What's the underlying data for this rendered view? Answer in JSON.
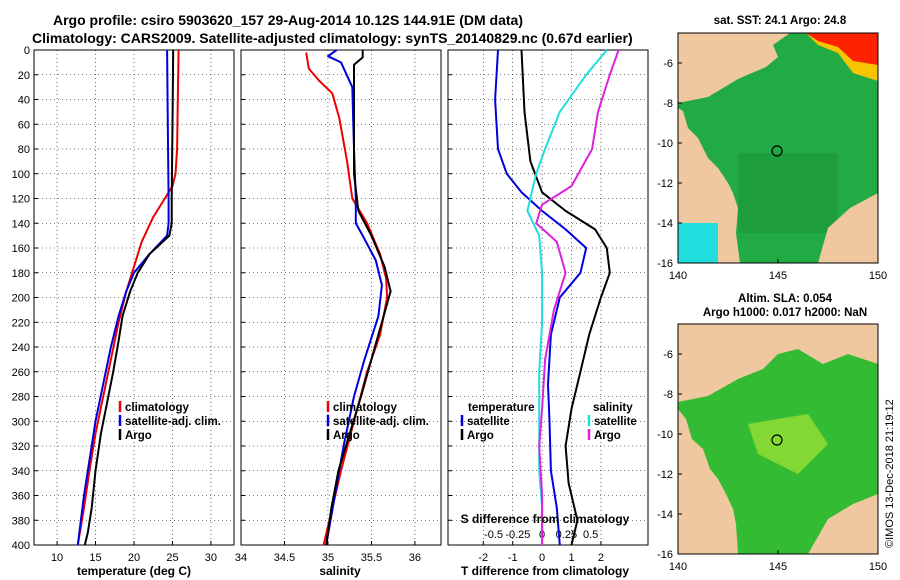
{
  "title": {
    "line1": "Argo profile: csiro 5903620_157 29-Aug-2014 10.12S 144.91E (DM data)",
    "line2": "Climatology: CARS2009. Satellite-adjusted climatology: synTS_20140829.nc (0.67d earlier)"
  },
  "side_label": "©IMOS 13-Dec-2018 21:19:12",
  "colors": {
    "red": "#ee0000",
    "blue": "#0000dd",
    "black": "#000000",
    "cyan": "#22dddd",
    "magenta": "#dd22dd",
    "land": "#f0c8a0",
    "sea": "#22aa44"
  },
  "chart_data": [
    {
      "type": "line",
      "id": "temperature",
      "xlabel": "temperature (deg C)",
      "ylim": [
        0,
        400
      ],
      "xlim": [
        7,
        33
      ],
      "xticks": [
        "10",
        "15",
        "20",
        "25",
        "30"
      ],
      "yticks": [
        "0",
        "20",
        "40",
        "60",
        "80",
        "100",
        "120",
        "140",
        "160",
        "180",
        "200",
        "220",
        "240",
        "260",
        "280",
        "300",
        "320",
        "340",
        "360",
        "380",
        "400"
      ],
      "legend": [
        "climatology",
        "satellite-adj. clim.",
        "Argo"
      ],
      "series": [
        {
          "name": "climatology",
          "color": "red",
          "points": [
            [
              25.8,
              0
            ],
            [
              25.7,
              40
            ],
            [
              25.6,
              80
            ],
            [
              25.4,
              100
            ],
            [
              25,
              110
            ],
            [
              24,
              120
            ],
            [
              22.5,
              135
            ],
            [
              21,
              155
            ],
            [
              20,
              175
            ],
            [
              19,
              195
            ],
            [
              18,
              220
            ],
            [
              17,
              250
            ],
            [
              16,
              280
            ],
            [
              15,
              310
            ],
            [
              14.2,
              340
            ],
            [
              13.5,
              370
            ],
            [
              12.7,
              400
            ]
          ]
        },
        {
          "name": "satellite-adj. clim.",
          "color": "blue",
          "points": [
            [
              24.3,
              0
            ],
            [
              24.4,
              60
            ],
            [
              24.5,
              120
            ],
            [
              24.5,
              140
            ],
            [
              24.3,
              150
            ],
            [
              22,
              165
            ],
            [
              20,
              180
            ],
            [
              19,
              195
            ],
            [
              18,
              215
            ],
            [
              17,
              240
            ],
            [
              16,
              270
            ],
            [
              15,
              300
            ],
            [
              14,
              340
            ],
            [
              13.5,
              360
            ],
            [
              12.7,
              400
            ]
          ]
        },
        {
          "name": "Argo",
          "color": "black",
          "points": [
            [
              25.1,
              0
            ],
            [
              25,
              60
            ],
            [
              24.9,
              120
            ],
            [
              24.9,
              140
            ],
            [
              24.6,
              150
            ],
            [
              22,
              165
            ],
            [
              20.5,
              180
            ],
            [
              19.5,
              195
            ],
            [
              18.5,
              215
            ],
            [
              18,
              235
            ],
            [
              17.3,
              260
            ],
            [
              16.5,
              285
            ],
            [
              15.7,
              310
            ],
            [
              15,
              340
            ],
            [
              14.5,
              370
            ],
            [
              14,
              390
            ],
            [
              13.6,
              400
            ]
          ]
        }
      ]
    },
    {
      "type": "line",
      "id": "salinity",
      "xlabel": "salinity",
      "ylim": [
        0,
        400
      ],
      "xlim": [
        34,
        36.3
      ],
      "xticks": [
        "34",
        "34.5",
        "35",
        "35.5",
        "36"
      ],
      "legend": [
        "climatology",
        "satellite-adj. clim.",
        "Argo"
      ],
      "series": [
        {
          "name": "climatology",
          "color": "red",
          "points": [
            [
              34.75,
              2
            ],
            [
              34.78,
              15
            ],
            [
              34.9,
              25
            ],
            [
              35.05,
              35
            ],
            [
              35.13,
              55
            ],
            [
              35.22,
              90
            ],
            [
              35.28,
              120
            ],
            [
              35.45,
              140
            ],
            [
              35.6,
              165
            ],
            [
              35.67,
              185
            ],
            [
              35.68,
              200
            ],
            [
              35.6,
              230
            ],
            [
              35.45,
              260
            ],
            [
              35.3,
              300
            ],
            [
              35.15,
              340
            ],
            [
              35.05,
              370
            ],
            [
              34.95,
              400
            ]
          ]
        },
        {
          "name": "satellite-adj. clim.",
          "color": "blue",
          "points": [
            [
              35.1,
              0
            ],
            [
              35.0,
              5
            ],
            [
              35.15,
              10
            ],
            [
              35.28,
              30
            ],
            [
              35.3,
              80
            ],
            [
              35.32,
              120
            ],
            [
              35.32,
              140
            ],
            [
              35.4,
              150
            ],
            [
              35.55,
              170
            ],
            [
              35.62,
              190
            ],
            [
              35.58,
              215
            ],
            [
              35.42,
              250
            ],
            [
              35.3,
              280
            ],
            [
              35.18,
              320
            ],
            [
              35.08,
              360
            ],
            [
              34.98,
              400
            ]
          ]
        },
        {
          "name": "Argo",
          "color": "black",
          "points": [
            [
              35.4,
              0
            ],
            [
              35.4,
              6
            ],
            [
              35.3,
              12
            ],
            [
              35.3,
              50
            ],
            [
              35.3,
              100
            ],
            [
              35.35,
              130
            ],
            [
              35.5,
              150
            ],
            [
              35.65,
              175
            ],
            [
              35.72,
              195
            ],
            [
              35.62,
              220
            ],
            [
              35.5,
              250
            ],
            [
              35.38,
              280
            ],
            [
              35.25,
              310
            ],
            [
              35.12,
              340
            ],
            [
              35.04,
              370
            ],
            [
              34.98,
              400
            ]
          ]
        }
      ]
    },
    {
      "type": "line",
      "id": "differences",
      "xlabel": "T difference from climatology",
      "xlabel_top": "S difference from climatology",
      "ylim": [
        0,
        400
      ],
      "xlim": [
        -3.2,
        3.6
      ],
      "xticks": [
        "-2",
        "-1",
        "0",
        "1",
        "2"
      ],
      "xticks_top": [
        "-0.5",
        "-0.25",
        "0",
        "0.25",
        "0.5"
      ],
      "legend_temperature_title": "temperature",
      "legend_salinity_title": "salinity",
      "legend_temperature": [
        "satellite",
        "Argo"
      ],
      "legend_salinity": [
        "satellite",
        "Argo"
      ],
      "series": [
        {
          "name": "T satellite",
          "color": "blue",
          "points": [
            [
              -1.5,
              0
            ],
            [
              -1.6,
              40
            ],
            [
              -1.5,
              80
            ],
            [
              -1.2,
              100
            ],
            [
              -0.7,
              115
            ],
            [
              0,
              130
            ],
            [
              0.8,
              145
            ],
            [
              1.5,
              160
            ],
            [
              1.3,
              180
            ],
            [
              0.6,
              200
            ],
            [
              0.3,
              230
            ],
            [
              0.2,
              270
            ],
            [
              0.25,
              300
            ],
            [
              0.3,
              340
            ],
            [
              0.5,
              370
            ],
            [
              0.6,
              400
            ]
          ]
        },
        {
          "name": "T Argo",
          "color": "black",
          "points": [
            [
              -0.7,
              0
            ],
            [
              -0.6,
              50
            ],
            [
              -0.4,
              90
            ],
            [
              0,
              115
            ],
            [
              0.8,
              130
            ],
            [
              1.8,
              145
            ],
            [
              2.2,
              160
            ],
            [
              2.3,
              180
            ],
            [
              2.0,
              200
            ],
            [
              1.6,
              230
            ],
            [
              1.3,
              260
            ],
            [
              1.0,
              290
            ],
            [
              0.8,
              320
            ],
            [
              0.9,
              350
            ],
            [
              1.2,
              380
            ],
            [
              1.0,
              400
            ]
          ]
        },
        {
          "name": "S satellite",
          "color": "cyan",
          "points": [
            [
              2.2,
              0
            ],
            [
              1.5,
              20
            ],
            [
              0.6,
              50
            ],
            [
              0.1,
              80
            ],
            [
              -0.2,
              100
            ],
            [
              -0.5,
              130
            ],
            [
              -0.1,
              150
            ],
            [
              0,
              180
            ],
            [
              0,
              220
            ],
            [
              -0.1,
              260
            ],
            [
              -0.1,
              300
            ],
            [
              -0.1,
              340
            ],
            [
              0,
              370
            ],
            [
              0,
              400
            ]
          ]
        },
        {
          "name": "S Argo",
          "color": "magenta",
          "points": [
            [
              2.6,
              0
            ],
            [
              2.3,
              20
            ],
            [
              1.9,
              50
            ],
            [
              1.7,
              80
            ],
            [
              1.0,
              110
            ],
            [
              0,
              125
            ],
            [
              -0.2,
              140
            ],
            [
              0.5,
              155
            ],
            [
              0.8,
              180
            ],
            [
              0.4,
              210
            ],
            [
              0.1,
              250
            ],
            [
              0,
              290
            ],
            [
              -0.1,
              320
            ],
            [
              0,
              360
            ],
            [
              0,
              400
            ]
          ]
        }
      ]
    }
  ],
  "maps": [
    {
      "id": "sst-map",
      "title_line1": "sat. SST: 24.1 Argo: 24.8",
      "title_line2": "",
      "xticks": [
        "140",
        "145",
        "150"
      ],
      "yticks": [
        "-6",
        "-8",
        "-10",
        "-12",
        "-14",
        "-16"
      ],
      "marker_lon": 144.91,
      "marker_lat": -10.12
    },
    {
      "id": "sla-map",
      "title_line1": "Altim. SLA: 0.054",
      "title_line2": "Argo h1000: 0.017 h2000: NaN",
      "xticks": [
        "140",
        "145",
        "150"
      ],
      "yticks": [
        "-6",
        "-8",
        "-10",
        "-12",
        "-14",
        "-16"
      ],
      "marker_lon": 144.91,
      "marker_lat": -10.12
    }
  ]
}
